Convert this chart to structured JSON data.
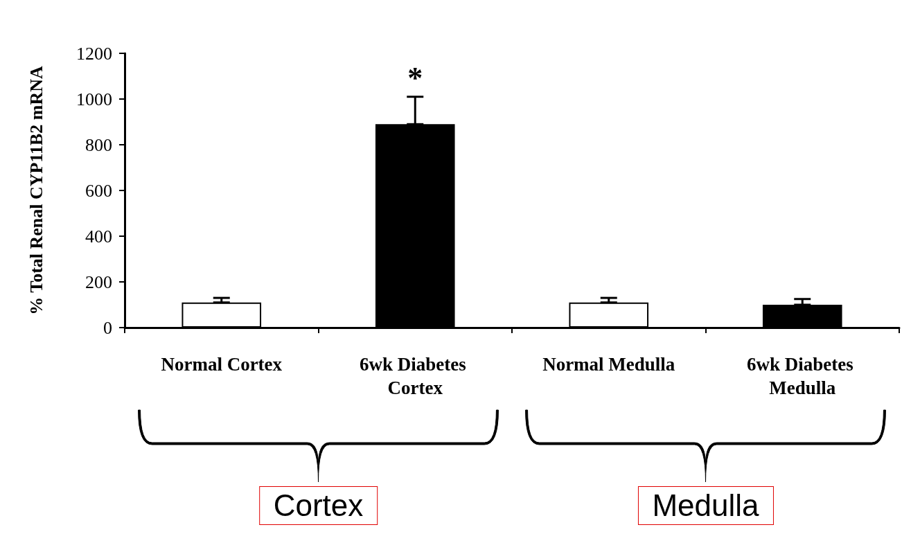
{
  "chart_data": {
    "type": "bar",
    "ylabel": "% Total Renal CYP11B2 mRNA",
    "categories": [
      "Normal Cortex",
      "6wk Diabetes Cortex",
      "Normal Medulla",
      "6wk Diabetes Medulla"
    ],
    "values": [
      110,
      890,
      110,
      100
    ],
    "colors": [
      "#ffffff",
      "#000000",
      "#ffffff",
      "#000000"
    ],
    "errors": [
      [
        110,
        130
      ],
      [
        890,
        1010
      ],
      [
        110,
        130
      ],
      [
        100,
        125
      ]
    ],
    "ylim": [
      0,
      1200
    ],
    "yticks": [
      0,
      200,
      400,
      600,
      800,
      1000,
      1200
    ],
    "grid": false,
    "annotations": [
      {
        "text": "*",
        "x": "6wk Diabetes Cortex",
        "y": 1010
      },
      "Cortex",
      "Medulla"
    ]
  }
}
